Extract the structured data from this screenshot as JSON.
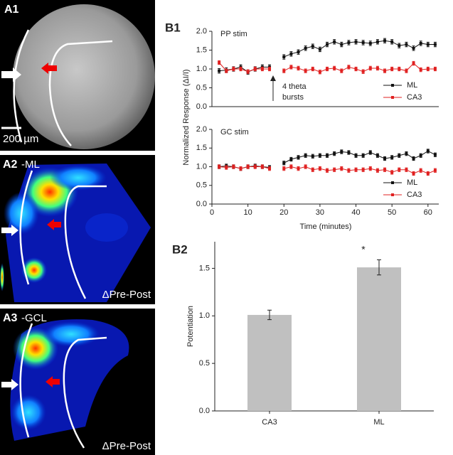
{
  "panels": [
    {
      "label": "A1",
      "scale": "200 µm"
    },
    {
      "label": "A2",
      "sublabel": "-ML",
      "caption": "ΔPre-Post"
    },
    {
      "label": "A3",
      "sublabel": "-GCL",
      "caption": "ΔPre-Post"
    }
  ],
  "chart_data": [
    {
      "type": "line",
      "panel": "B1",
      "title": "PP stim",
      "ylabel": "Normalized Response (ΔI/I)",
      "annotation": [
        "4 theta",
        "bursts"
      ],
      "x": [
        2,
        4,
        6,
        8,
        10,
        12,
        14,
        16,
        18,
        20,
        22,
        24,
        26,
        28,
        30,
        32,
        34,
        36,
        38,
        40,
        42,
        44,
        46,
        48,
        50,
        52,
        54,
        56,
        58,
        60,
        62
      ],
      "xlim": [
        0,
        63
      ],
      "ylim": [
        0,
        2
      ],
      "yticks": [
        {
          "value": 0,
          "label": "0.0"
        },
        {
          "value": 0.5,
          "label": "0.5"
        },
        {
          "value": 1,
          "label": "1.0"
        },
        {
          "value": 1.5,
          "label": "1.5"
        },
        {
          "value": 2,
          "label": "2.0"
        }
      ],
      "legend": "lower right",
      "series": [
        {
          "name": "ML",
          "color": "#111111",
          "error": 0.06,
          "values": [
            0.95,
            0.97,
            1.0,
            1.05,
            0.92,
            1.0,
            1.05,
            1.05,
            null,
            1.32,
            1.4,
            1.45,
            1.55,
            1.6,
            1.52,
            1.65,
            1.72,
            1.65,
            1.7,
            1.72,
            1.7,
            1.68,
            1.72,
            1.75,
            1.72,
            1.62,
            1.65,
            1.55,
            1.68,
            1.65,
            1.65
          ]
        },
        {
          "name": "CA3",
          "color": "#e02020",
          "error": 0.05,
          "values": [
            1.17,
            0.95,
            1.0,
            1.0,
            0.93,
            1.0,
            1.0,
            1.0,
            null,
            0.95,
            1.05,
            1.02,
            0.95,
            1.0,
            0.92,
            1.0,
            1.02,
            0.95,
            1.05,
            1.0,
            0.93,
            1.02,
            1.02,
            0.95,
            1.0,
            1.0,
            0.95,
            1.15,
            0.98,
            1.0,
            1.0
          ]
        }
      ]
    },
    {
      "type": "line",
      "title": "GC stim",
      "xlabel": "Time (minutes)",
      "x": [
        2,
        4,
        6,
        8,
        10,
        12,
        14,
        16,
        18,
        20,
        22,
        24,
        26,
        28,
        30,
        32,
        34,
        36,
        38,
        40,
        42,
        44,
        46,
        48,
        50,
        52,
        54,
        56,
        58,
        60,
        62
      ],
      "xlim": [
        0,
        63
      ],
      "xticks": [
        0,
        10,
        20,
        30,
        40,
        50,
        60
      ],
      "ylim": [
        0,
        2
      ],
      "yticks": [
        {
          "value": 0,
          "label": "0.0"
        },
        {
          "value": 0.5,
          "label": "0.5"
        },
        {
          "value": 1,
          "label": "1.0"
        },
        {
          "value": 1.5,
          "label": "1.5"
        },
        {
          "value": 2,
          "label": "2.0"
        }
      ],
      "legend": "lower right",
      "series": [
        {
          "name": "ML",
          "color": "#111111",
          "error": 0.05,
          "values": [
            1.0,
            1.02,
            1.0,
            0.95,
            1.0,
            1.02,
            1.0,
            0.98,
            null,
            1.1,
            1.2,
            1.25,
            1.3,
            1.28,
            1.3,
            1.3,
            1.35,
            1.4,
            1.38,
            1.3,
            1.3,
            1.38,
            1.3,
            1.22,
            1.25,
            1.3,
            1.35,
            1.22,
            1.3,
            1.42,
            1.32
          ]
        },
        {
          "name": "CA3",
          "color": "#e02020",
          "error": 0.05,
          "values": [
            1.0,
            0.98,
            1.0,
            0.95,
            1.0,
            1.0,
            1.0,
            0.95,
            null,
            0.95,
            1.0,
            0.95,
            1.0,
            0.92,
            0.95,
            0.9,
            0.92,
            0.95,
            0.9,
            0.92,
            0.92,
            0.95,
            0.9,
            0.92,
            0.85,
            0.92,
            0.92,
            0.82,
            0.9,
            0.82,
            0.9
          ]
        }
      ]
    },
    {
      "type": "bar",
      "panel": "B2",
      "ylabel": "Potentiation",
      "annotation": "*",
      "categories": [
        "CA3",
        "ML"
      ],
      "values": [
        1.01,
        1.51
      ],
      "errors": [
        0.05,
        0.08
      ],
      "color": "#c0c0c0",
      "ylim": [
        0,
        1.78
      ],
      "yticks": [
        {
          "value": 0,
          "label": "0.0"
        },
        {
          "value": 0.5,
          "label": "0.5"
        },
        {
          "value": 1,
          "label": "1.0"
        },
        {
          "value": 1.5,
          "label": "1.5"
        }
      ]
    }
  ]
}
